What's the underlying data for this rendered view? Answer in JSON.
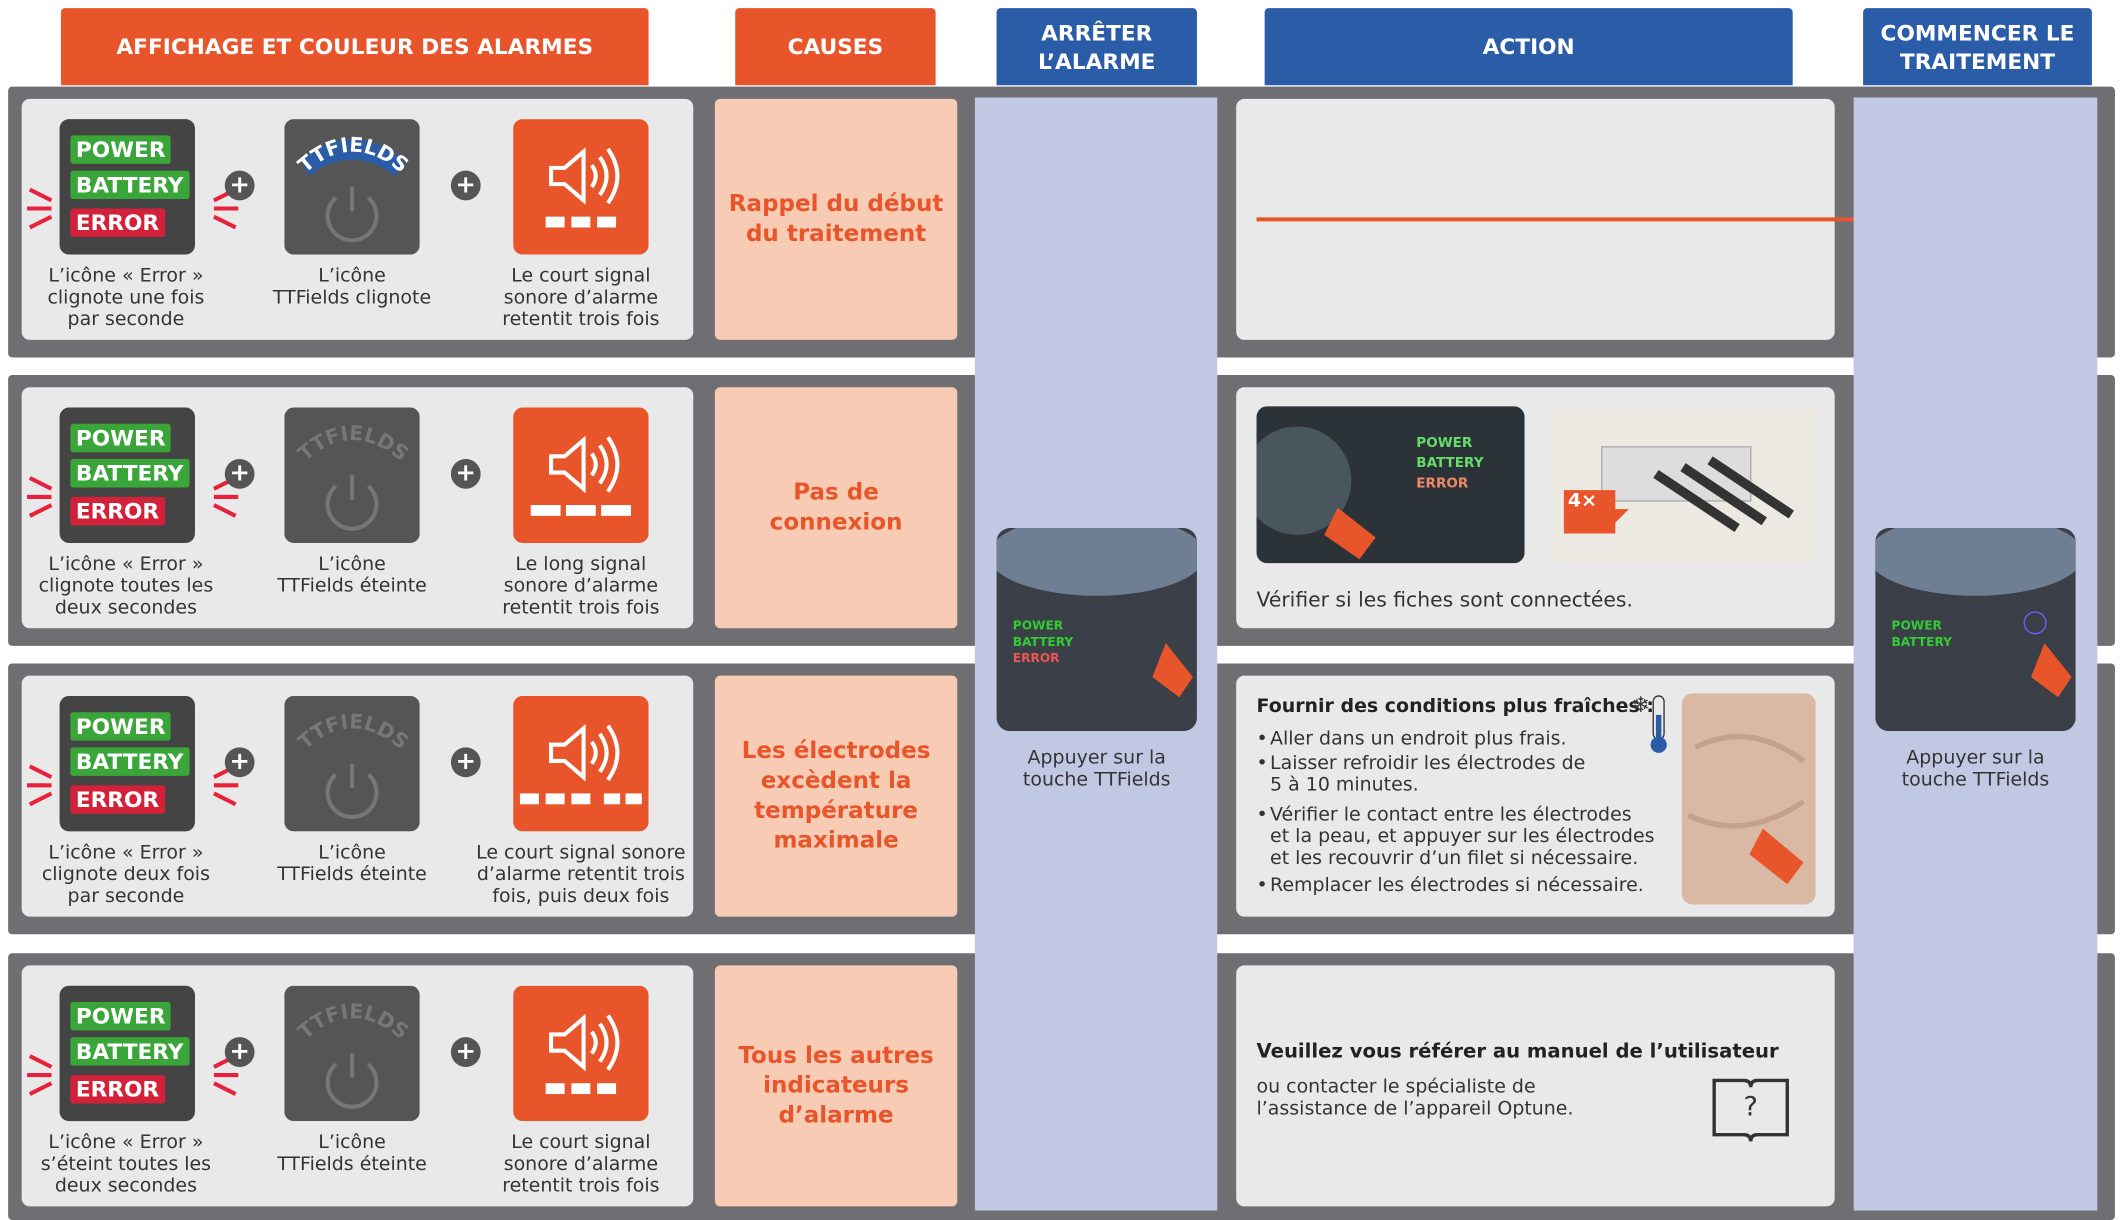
{
  "headers": [
    "AFFICHAGE ET COULEUR DES ALARMES",
    "CAUSES",
    "ARRÊTER\nL’ALARME",
    "ACTION",
    "COMMENCER LE\nTRAITEMENT"
  ],
  "status_panel": {
    "power": "POWER",
    "battery": "BATTERY",
    "error": "ERROR"
  },
  "ttfields_label": "TTFIELDS",
  "rows": [
    {
      "error_caption": "L’icône « Error »\nclignote une fois\npar seconde",
      "ttfields_caption": "L’icône\nTTFields clignote",
      "sound_caption": "Le court signal\nsonore d’alarme\nretentit trois fois",
      "cause": "Rappel du début\ndu traitement"
    },
    {
      "error_caption": "L’icône « Error »\nclignote toutes les\ndeux secondes",
      "ttfields_caption": "L’icône\nTTFields éteinte",
      "sound_caption": "Le long signal\nsonore d’alarme\nretentit trois fois",
      "cause": "Pas de\nconnexion"
    },
    {
      "error_caption": "L’icône « Error »\nclignote deux fois\npar seconde",
      "ttfields_caption": "L’icône\nTTFields éteinte",
      "sound_caption": "Le court signal sonore\nd’alarme retentit trois\nfois, puis deux fois",
      "cause": "Les électrodes\nexcèdent la\ntempérature\nmaximale"
    },
    {
      "error_caption": "L’icône « Error »\ns’éteint toutes les\ndeux secondes",
      "ttfields_caption": "L’icône\nTTFields éteinte",
      "sound_caption": "Le court signal\nsonore d’alarme\nretentit trois fois",
      "cause": "Tous les autres\nindicateurs\nd’alarme"
    }
  ],
  "stop_caption": "Appuyer sur la\ntouche TTFields",
  "start_caption": "Appuyer sur la\ntouche TTFields",
  "actions": {
    "connection": {
      "text": "Vérifier si les fiches sont connectées.",
      "badge": "4×"
    },
    "temperature": {
      "title": "Fournir des conditions plus fraîches :",
      "items": [
        "Aller dans un endroit plus frais.",
        "Laisser refroidir les électrodes de\n5 à 10 minutes.",
        "Vérifier le contact entre les électrodes\net la peau, et appuyer sur les électrodes\net les recouvrir d’un filet si nécessaire.",
        "Remplacer les électrodes si nécessaire."
      ]
    },
    "other": {
      "title": "Veuillez vous référer au manuel de l’utilisateur",
      "text": "ou contacter le spécialiste de\nl’assistance de l’appareil Optune."
    }
  }
}
